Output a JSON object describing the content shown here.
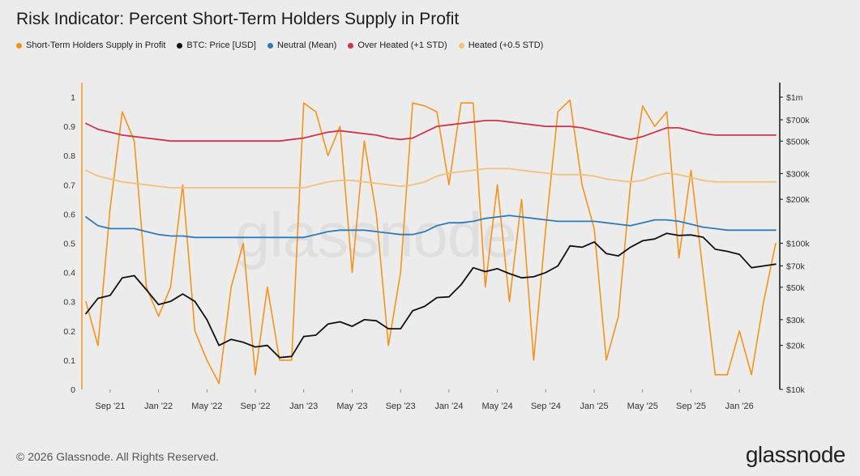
{
  "title": "Risk Indicator: Percent Short-Term Holders Supply in Profit",
  "footer": "© 2026 Glassnode. All Rights Reserved.",
  "brand": "glassnode",
  "watermark": "glassnode",
  "legend": [
    {
      "label": "Short-Term Holders Supply in Profit",
      "color": "#f7931a"
    },
    {
      "label": "BTC: Price [USD]",
      "color": "#111111"
    },
    {
      "label": "Neutral (Mean)",
      "color": "#2e7bb7"
    },
    {
      "label": "Over Heated (+1 STD)",
      "color": "#d0334a"
    },
    {
      "label": "Heated (+0.5 STD)",
      "color": "#f2c27a"
    }
  ],
  "chart_data": {
    "type": "line",
    "title": "Risk Indicator: Percent Short-Term Holders Supply in Profit",
    "x_tick_labels": [
      "Sep '21",
      "Jan '22",
      "May '22",
      "Sep '22",
      "Jan '23",
      "May '23",
      "Sep '23",
      "Jan '24",
      "May '24",
      "Sep '24",
      "Jan '25",
      "May '25",
      "Sep '25",
      "Jan '26"
    ],
    "y_left": {
      "ticks": [
        "0",
        "0.1",
        "0.2",
        "0.3",
        "0.4",
        "0.5",
        "0.6",
        "0.7",
        "0.8",
        "0.9",
        "1"
      ],
      "range": [
        0,
        1
      ]
    },
    "y_right": {
      "scale": "log",
      "ticks": [
        "$10k",
        "$20k",
        "$30k",
        "$50k",
        "$70k",
        "$100k",
        "$200k",
        "$300k",
        "$500k",
        "$700k",
        "$1m"
      ],
      "range": [
        10000,
        1000000
      ]
    },
    "x_months": [
      "2021-07",
      "2021-08",
      "2021-09",
      "2021-10",
      "2021-11",
      "2021-12",
      "2022-01",
      "2022-02",
      "2022-03",
      "2022-04",
      "2022-05",
      "2022-06",
      "2022-07",
      "2022-08",
      "2022-09",
      "2022-10",
      "2022-11",
      "2022-12",
      "2023-01",
      "2023-02",
      "2023-03",
      "2023-04",
      "2023-05",
      "2023-06",
      "2023-07",
      "2023-08",
      "2023-09",
      "2023-10",
      "2023-11",
      "2023-12",
      "2024-01",
      "2024-02",
      "2024-03",
      "2024-04",
      "2024-05",
      "2024-06",
      "2024-07",
      "2024-08",
      "2024-09",
      "2024-10",
      "2024-11",
      "2024-12",
      "2025-01",
      "2025-02",
      "2025-03",
      "2025-04",
      "2025-05",
      "2025-06",
      "2025-07",
      "2025-08",
      "2025-09",
      "2025-10",
      "2025-11",
      "2025-12",
      "2026-01",
      "2026-02",
      "2026-03",
      "2026-04"
    ],
    "series": [
      {
        "name": "Short-Term Holders Supply in Profit",
        "color": "#f7931a",
        "axis": "left",
        "values": [
          0.3,
          0.15,
          0.62,
          0.95,
          0.85,
          0.35,
          0.25,
          0.35,
          0.7,
          0.2,
          0.1,
          0.02,
          0.35,
          0.5,
          0.05,
          0.35,
          0.1,
          0.1,
          0.98,
          0.95,
          0.8,
          0.9,
          0.4,
          0.85,
          0.6,
          0.15,
          0.4,
          0.98,
          0.97,
          0.95,
          0.7,
          0.98,
          0.98,
          0.35,
          0.7,
          0.3,
          0.65,
          0.1,
          0.55,
          0.95,
          0.99,
          0.7,
          0.55,
          0.1,
          0.25,
          0.7,
          0.97,
          0.9,
          0.95,
          0.45,
          0.75,
          0.4,
          0.05,
          0.05,
          0.2,
          0.05,
          0.3,
          0.5
        ]
      },
      {
        "name": "BTC: Price [USD]",
        "color": "#111111",
        "axis": "right",
        "values": [
          33000,
          42000,
          44000,
          58000,
          60000,
          48000,
          38000,
          40000,
          45000,
          40000,
          30000,
          20000,
          22000,
          21000,
          19500,
          20000,
          16500,
          16800,
          23000,
          23500,
          28000,
          29000,
          27000,
          30000,
          29500,
          26000,
          26000,
          34500,
          37000,
          42500,
          43000,
          52000,
          68000,
          64000,
          67000,
          62000,
          58000,
          59000,
          63000,
          70000,
          96000,
          94000,
          102000,
          85000,
          82000,
          94000,
          104000,
          107000,
          117000,
          113000,
          114000,
          110000,
          91000,
          88000,
          84000,
          68000,
          70000,
          72000
        ]
      },
      {
        "name": "Neutral (Mean)",
        "color": "#2e7bb7",
        "axis": "left",
        "values": [
          0.59,
          0.56,
          0.55,
          0.55,
          0.55,
          0.54,
          0.53,
          0.525,
          0.525,
          0.52,
          0.52,
          0.52,
          0.52,
          0.52,
          0.52,
          0.52,
          0.52,
          0.52,
          0.52,
          0.53,
          0.54,
          0.545,
          0.545,
          0.545,
          0.54,
          0.535,
          0.53,
          0.53,
          0.54,
          0.56,
          0.57,
          0.57,
          0.575,
          0.585,
          0.59,
          0.595,
          0.59,
          0.585,
          0.58,
          0.575,
          0.575,
          0.575,
          0.575,
          0.57,
          0.565,
          0.56,
          0.57,
          0.58,
          0.58,
          0.575,
          0.565,
          0.555,
          0.55,
          0.545,
          0.545,
          0.545,
          0.545,
          0.545
        ]
      },
      {
        "name": "Over Heated (+1 STD)",
        "color": "#d0334a",
        "axis": "left",
        "values": [
          0.91,
          0.89,
          0.88,
          0.87,
          0.865,
          0.86,
          0.855,
          0.85,
          0.85,
          0.85,
          0.85,
          0.85,
          0.85,
          0.85,
          0.85,
          0.85,
          0.85,
          0.855,
          0.86,
          0.87,
          0.88,
          0.885,
          0.88,
          0.875,
          0.87,
          0.86,
          0.855,
          0.86,
          0.88,
          0.9,
          0.905,
          0.91,
          0.915,
          0.92,
          0.92,
          0.915,
          0.91,
          0.905,
          0.9,
          0.9,
          0.9,
          0.895,
          0.885,
          0.875,
          0.865,
          0.855,
          0.865,
          0.88,
          0.895,
          0.895,
          0.885,
          0.875,
          0.87,
          0.87,
          0.87,
          0.87,
          0.87,
          0.87
        ]
      },
      {
        "name": "Heated (+0.5 STD)",
        "color": "#f2c27a",
        "axis": "left",
        "values": [
          0.75,
          0.73,
          0.72,
          0.71,
          0.705,
          0.7,
          0.695,
          0.69,
          0.69,
          0.69,
          0.69,
          0.69,
          0.69,
          0.69,
          0.69,
          0.69,
          0.69,
          0.69,
          0.69,
          0.7,
          0.71,
          0.715,
          0.715,
          0.71,
          0.705,
          0.7,
          0.695,
          0.7,
          0.71,
          0.73,
          0.74,
          0.745,
          0.75,
          0.755,
          0.755,
          0.755,
          0.75,
          0.745,
          0.74,
          0.735,
          0.735,
          0.735,
          0.73,
          0.72,
          0.715,
          0.71,
          0.715,
          0.73,
          0.74,
          0.735,
          0.725,
          0.715,
          0.71,
          0.71,
          0.71,
          0.71,
          0.71,
          0.71
        ]
      }
    ],
    "grid": false,
    "legend_position": "top-left"
  }
}
